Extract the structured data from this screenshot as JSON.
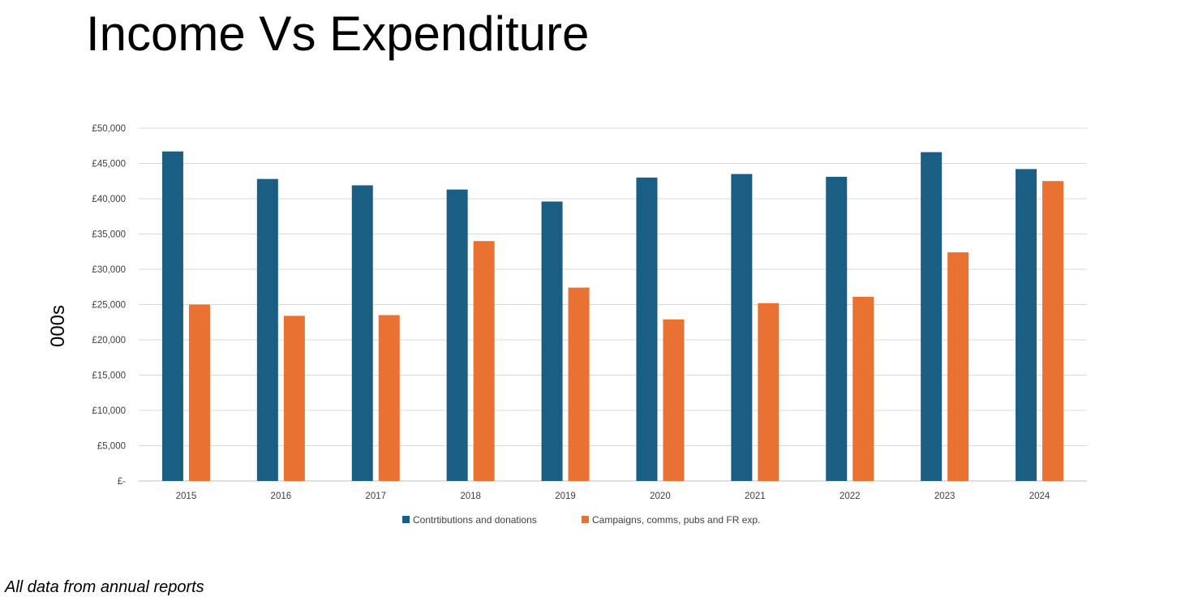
{
  "slide": {
    "title": "Income Vs Expenditure",
    "footnote": "All data from annual reports"
  },
  "chart_data": {
    "type": "bar",
    "title": "Income Vs Expenditure",
    "xlabel": "",
    "ylabel": "000s",
    "categories": [
      "2015",
      "2016",
      "2017",
      "2018",
      "2019",
      "2020",
      "2021",
      "2022",
      "2023",
      "2024"
    ],
    "series": [
      {
        "name": "Contrtibutions and donations",
        "color": "#1a5e83",
        "values": [
          46700,
          42800,
          41900,
          41300,
          39600,
          43000,
          43500,
          43100,
          46600,
          44200
        ]
      },
      {
        "name": "Campaigns, comms, pubs and FR exp.",
        "color": "#e97132",
        "values": [
          25000,
          23400,
          23500,
          34000,
          27400,
          22900,
          25200,
          26100,
          32400,
          42500
        ]
      }
    ],
    "ylim": [
      0,
      50000
    ],
    "yticks": [
      0,
      5000,
      10000,
      15000,
      20000,
      25000,
      30000,
      35000,
      40000,
      45000,
      50000
    ],
    "ytick_labels": [
      "£-",
      "£5,000",
      "£10,000",
      "£15,000",
      "£20,000",
      "£25,000",
      "£30,000",
      "£35,000",
      "£40,000",
      "£45,000",
      "£50,000"
    ],
    "grid": true,
    "legend_position": "bottom"
  }
}
